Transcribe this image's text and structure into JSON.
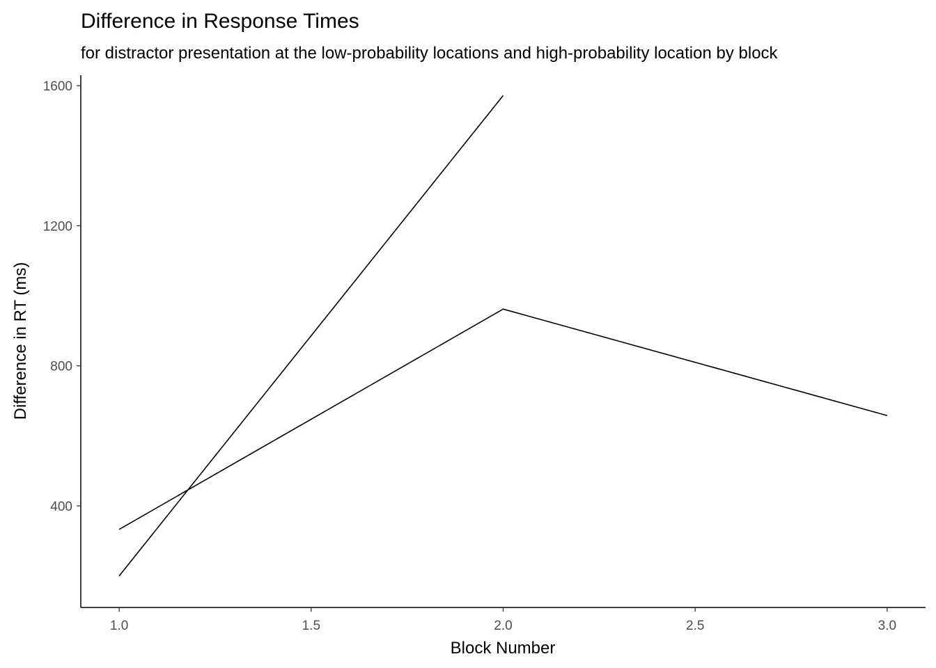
{
  "chart_data": {
    "type": "line",
    "title": "Difference in Response Times",
    "subtitle": "for distractor presentation at the low-probability locations and high-probability location by block",
    "xlabel": "Block Number",
    "ylabel": "Difference in RT (ms)",
    "xlim": [
      0.9,
      3.1
    ],
    "ylim": [
      110,
      1630
    ],
    "x_ticks": [
      1.0,
      1.5,
      2.0,
      2.5,
      3.0
    ],
    "x_tick_labels": [
      "1.0",
      "1.5",
      "2.0",
      "2.5",
      "3.0"
    ],
    "y_ticks": [
      400,
      800,
      1200,
      1600
    ],
    "y_tick_labels": [
      "400",
      "800",
      "1200",
      "1600"
    ],
    "grid": false,
    "legend": "none",
    "series": [
      {
        "x": [
          1,
          2
        ],
        "y": [
          200,
          1572
        ],
        "color": "#000000"
      },
      {
        "x": [
          1,
          2,
          3
        ],
        "y": [
          333,
          962,
          658
        ],
        "color": "#000000"
      }
    ]
  }
}
